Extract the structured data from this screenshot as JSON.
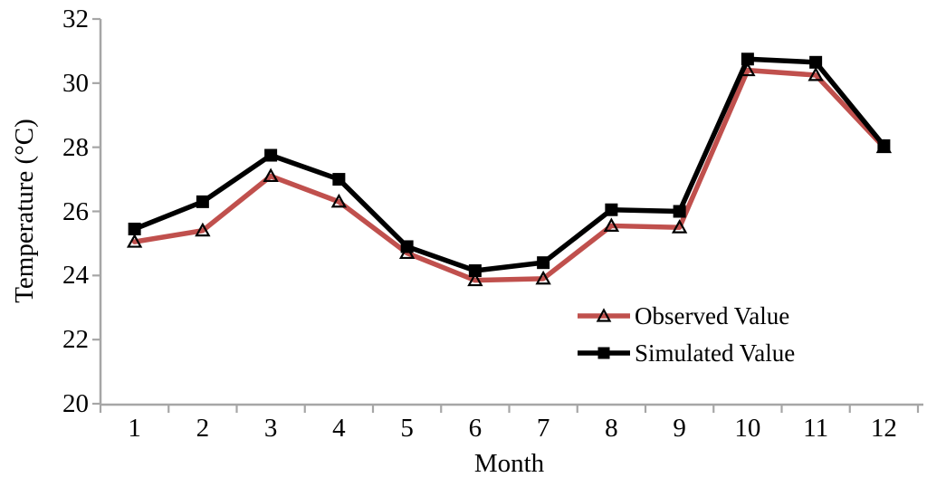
{
  "chart_data": {
    "type": "line",
    "title": "",
    "xlabel": "Month",
    "ylabel": "Temperature (°C)",
    "categories": [
      1,
      2,
      3,
      4,
      5,
      6,
      7,
      8,
      9,
      10,
      11,
      12
    ],
    "x_tick_labels": [
      "1",
      "2",
      "3",
      "4",
      "5",
      "6",
      "7",
      "8",
      "9",
      "10",
      "11",
      "12"
    ],
    "y_ticks": [
      20,
      22,
      24,
      26,
      28,
      30,
      32
    ],
    "y_tick_labels": [
      "20",
      "22",
      "24",
      "26",
      "28",
      "30",
      "32"
    ],
    "ylim": [
      20,
      32
    ],
    "grid": false,
    "legend_position": "inside-right",
    "axis_color": "#A6A6A6",
    "series": [
      {
        "name": "Observed Value",
        "color": "#C0504D",
        "marker": "open-triangle",
        "marker_stroke": "#000000",
        "values": [
          25.05,
          25.4,
          27.1,
          26.3,
          24.7,
          23.85,
          23.9,
          25.55,
          25.5,
          30.4,
          30.25,
          28.0
        ]
      },
      {
        "name": "Simulated Value",
        "color": "#000000",
        "marker": "filled-square",
        "marker_stroke": "#000000",
        "values": [
          25.45,
          26.3,
          27.75,
          27.0,
          24.9,
          24.15,
          24.4,
          26.05,
          26.0,
          30.75,
          30.65,
          28.05
        ]
      }
    ]
  }
}
